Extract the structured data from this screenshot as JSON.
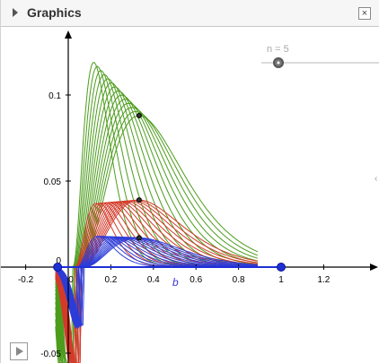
{
  "panel": {
    "title": "Graphics",
    "close_glyph": "×"
  },
  "slider": {
    "label": "n = 5",
    "value": 5
  },
  "axes": {
    "x_ticks": [
      "-0.2",
      "0",
      "0.2",
      "0.4",
      "0.6",
      "0.8",
      "1",
      "1.2"
    ],
    "y_ticks": [
      "0.1",
      "0.05",
      "0",
      "-0.05"
    ],
    "x_point_label": "b",
    "xlim": [
      -0.3,
      1.42
    ],
    "ylim": [
      -0.055,
      0.135
    ]
  },
  "chart_data": {
    "type": "line",
    "title": "",
    "xlabel": "",
    "ylabel": "",
    "xlim": [
      -0.3,
      1.42
    ],
    "ylim": [
      -0.055,
      0.135
    ],
    "families": [
      {
        "color": "#4c9c1c",
        "peak_min": 0.088,
        "peak_max": 0.119,
        "xpeak_min": 0.12,
        "xpeak_max": 0.333,
        "marked_point": [
          0.333,
          0.088
        ]
      },
      {
        "color": "#d43a2a",
        "peak_min": 0.039,
        "peak_max": 0.037,
        "xpeak_min": 0.13,
        "xpeak_max": 0.333,
        "marked_point": [
          0.333,
          0.039
        ]
      },
      {
        "color": "#2c3cd8",
        "peak_min": 0.017,
        "peak_max": 0.018,
        "xpeak_min": 0.14,
        "xpeak_max": 0.333,
        "marked_point": [
          0.333,
          0.017
        ]
      }
    ],
    "axis_points": [
      [
        -0.05,
        0
      ],
      [
        1,
        0
      ]
    ]
  },
  "icons": {
    "toggle": "triangle-right-icon",
    "close": "close-icon",
    "play": "play-icon"
  }
}
